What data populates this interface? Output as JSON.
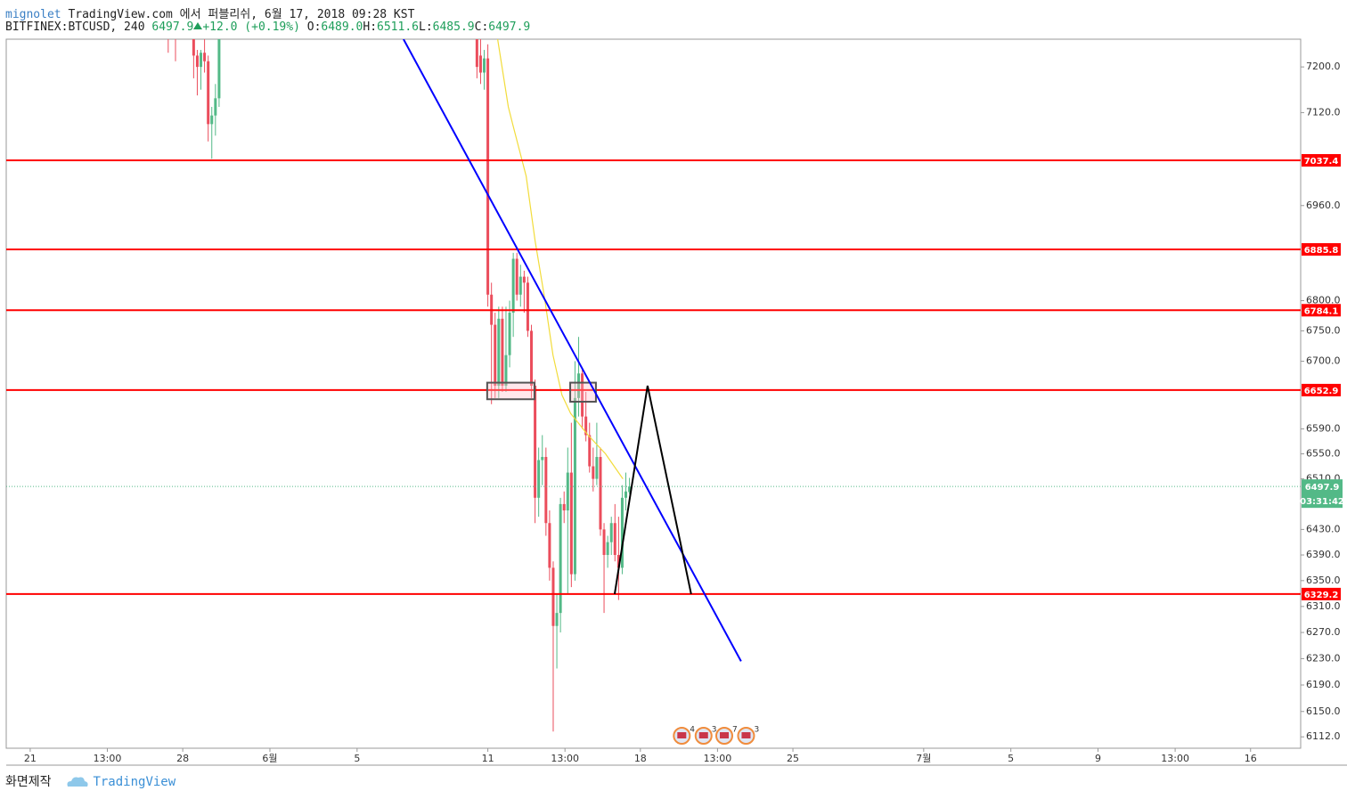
{
  "header": {
    "author": "mignolet",
    "published": "TradingView.com 에서 퍼블리쉬, 6월 17, 2018 09:28 KST",
    "symbol": "BITFINEX:BTCUSD, 240",
    "last": "6497.9",
    "change": "+12.0 (+0.19%)",
    "ohlc": [
      {
        "label": "O:",
        "value": "6489.0"
      },
      {
        "label": "H:",
        "value": "6511.6"
      },
      {
        "label": "L:",
        "value": "6485.9"
      },
      {
        "label": "C:",
        "value": "6497.9"
      }
    ]
  },
  "chart_data": {
    "type": "candlestick",
    "log_scale": true,
    "grid": false,
    "xlim": [
      -1.1,
      58.3
    ],
    "ylim": [
      6095,
      7249
    ],
    "xticks": [
      {
        "value": 0,
        "label": "21"
      },
      {
        "value": 3.54,
        "label": "13:00"
      },
      {
        "value": 7,
        "label": "28"
      },
      {
        "value": 11,
        "label": "6월"
      },
      {
        "value": 15,
        "label": "5"
      },
      {
        "value": 21,
        "label": "11"
      },
      {
        "value": 24.54,
        "label": "13:00"
      },
      {
        "value": 28,
        "label": "18"
      },
      {
        "value": 31.54,
        "label": "13:00"
      },
      {
        "value": 35,
        "label": "25"
      },
      {
        "value": 41,
        "label": "7월"
      },
      {
        "value": 45,
        "label": "5"
      },
      {
        "value": 49,
        "label": "9"
      },
      {
        "value": 52.54,
        "label": "13:00"
      },
      {
        "value": 56,
        "label": "16"
      }
    ],
    "yticks": [
      {
        "value": 7200,
        "label": "7200.0"
      },
      {
        "value": 7120,
        "label": "7120.0"
      },
      {
        "value": 6960,
        "label": "6960.0"
      },
      {
        "value": 6800,
        "label": "6800.0"
      },
      {
        "value": 6750,
        "label": "6750.0"
      },
      {
        "value": 6700,
        "label": "6700.0"
      },
      {
        "value": 6590,
        "label": "6590.0"
      },
      {
        "value": 6550,
        "label": "6550.0"
      },
      {
        "value": 6510,
        "label": "6510.0"
      },
      {
        "value": 6430,
        "label": "6430.0"
      },
      {
        "value": 6390,
        "label": "6390.0"
      },
      {
        "value": 6350,
        "label": "6350.0"
      },
      {
        "value": 6310,
        "label": "6310.0"
      },
      {
        "value": 6270,
        "label": "6270.0"
      },
      {
        "value": 6230,
        "label": "6230.0"
      },
      {
        "value": 6190,
        "label": "6190.0"
      },
      {
        "value": 6150,
        "label": "6150.0"
      },
      {
        "value": 6112,
        "label": "6112.0"
      }
    ],
    "up_color": "#53b987",
    "down_color": "#eb4d5c",
    "x": [
      6.333,
      6.667,
      7.5,
      7.667,
      7.833,
      8.0,
      8.167,
      8.333,
      8.5,
      8.667,
      20.5,
      20.667,
      20.833,
      21,
      21.167,
      21.333,
      21.5,
      21.667,
      21.833,
      22,
      22.167,
      22.333,
      22.5,
      22.667,
      22.833,
      23,
      23.167,
      23.333,
      23.5,
      23.667,
      23.833,
      24,
      24.167,
      24.333,
      24.5,
      24.667,
      24.833,
      25,
      25.167,
      25.333,
      25.5,
      25.667,
      25.833,
      26,
      26.167,
      26.333,
      26.5,
      26.667,
      26.833,
      27,
      27.167,
      27.333,
      27.5
    ],
    "open": [
      7270,
      7280,
      7260,
      7220,
      7200,
      7225,
      7210,
      7100,
      7115,
      7145,
      7290,
      7220,
      7190,
      7215,
      6810,
      6760,
      6660,
      6770,
      6660,
      6710,
      6780,
      6870,
      6810,
      6840,
      6830,
      6750,
      6660,
      6480,
      6540,
      6545,
      6440,
      6370,
      6280,
      6300,
      6470,
      6460,
      6520,
      6360,
      6640,
      6680,
      6610,
      6580,
      6530,
      6510,
      6545,
      6430,
      6390,
      6410,
      6440,
      6390,
      6370,
      6480,
      6489
    ],
    "high": [
      7280,
      7290,
      7270,
      7230,
      7230,
      7260,
      7220,
      7130,
      7170,
      7300,
      7300,
      7260,
      7230,
      7240,
      6830,
      6780,
      6790,
      6790,
      6790,
      6800,
      6880,
      6880,
      6860,
      6850,
      6840,
      6760,
      6670,
      6560,
      6580,
      6560,
      6460,
      6380,
      6330,
      6480,
      6490,
      6560,
      6600,
      6700,
      6740,
      6690,
      6650,
      6600,
      6560,
      6600,
      6560,
      6440,
      6420,
      6450,
      6470,
      6450,
      6500,
      6520,
      6511.6
    ],
    "low": [
      7225,
      7210,
      7180,
      7150,
      7160,
      7190,
      7070,
      7040,
      7080,
      7130,
      7180,
      7170,
      7160,
      6790,
      6630,
      6640,
      6640,
      6650,
      6650,
      6690,
      6740,
      6800,
      6790,
      6780,
      6740,
      6640,
      6440,
      6450,
      6500,
      6420,
      6350,
      6120,
      6215,
      6270,
      6440,
      6330,
      6340,
      6350,
      6610,
      6590,
      6570,
      6520,
      6490,
      6500,
      6420,
      6300,
      6370,
      6390,
      6380,
      6320,
      6360,
      6460,
      6485.9
    ],
    "close": [
      7260,
      7260,
      7220,
      7200,
      7225,
      7210,
      7100,
      7115,
      7145,
      7290,
      7200,
      7190,
      7215,
      6810,
      6760,
      6660,
      6770,
      6660,
      6710,
      6780,
      6870,
      6810,
      6840,
      6830,
      6750,
      6660,
      6480,
      6540,
      6545,
      6440,
      6370,
      6280,
      6300,
      6470,
      6460,
      6520,
      6360,
      6640,
      6680,
      6610,
      6580,
      6530,
      6510,
      6545,
      6430,
      6390,
      6410,
      6440,
      6390,
      6370,
      6480,
      6490,
      6497.9
    ],
    "ma": {
      "color": "#f2dc3b",
      "x": [
        21.45,
        21.94,
        22.14,
        22.76,
        23.17,
        23.58,
        23.99,
        24.4,
        24.8,
        25.6,
        26.4,
        27.2
      ],
      "values": [
        7249,
        7130,
        7100,
        7010,
        6900,
        6810,
        6710,
        6645,
        6615,
        6580,
        6550,
        6510
      ]
    },
    "levels": [
      {
        "value": 7037.4,
        "color": "#ff0000"
      },
      {
        "value": 6885.8,
        "color": "#ff0000"
      },
      {
        "value": 6784.1,
        "color": "#ff0000"
      },
      {
        "value": 6652.9,
        "color": "#ff0000"
      },
      {
        "value": 6329.2,
        "color": "#ff0000"
      }
    ],
    "last_price": {
      "value": 6497.9,
      "color": "#53b987",
      "countdown": "03:31:42"
    },
    "trendline": {
      "color": "#0000ff",
      "x": [
        17.13,
        32.62
      ],
      "values": [
        7249,
        6226
      ]
    },
    "pattern": {
      "color": "#000000",
      "x": [
        26.82,
        28.33,
        30.33
      ],
      "values": [
        6329.2,
        6660,
        6329.2
      ]
    },
    "boxes": [
      {
        "x": [
          20.97,
          23.14
        ],
        "values": [
          6638,
          6665
        ]
      },
      {
        "x": [
          24.78,
          25.96
        ],
        "values": [
          6634,
          6665
        ]
      }
    ],
    "events": [
      {
        "x": 29.9,
        "count": 4
      },
      {
        "x": 30.9,
        "count": 3
      },
      {
        "x": 31.85,
        "count": 7
      },
      {
        "x": 32.85,
        "count": 3
      }
    ]
  },
  "footer": {
    "made_with": "화면제작",
    "brand": "TradingView"
  }
}
